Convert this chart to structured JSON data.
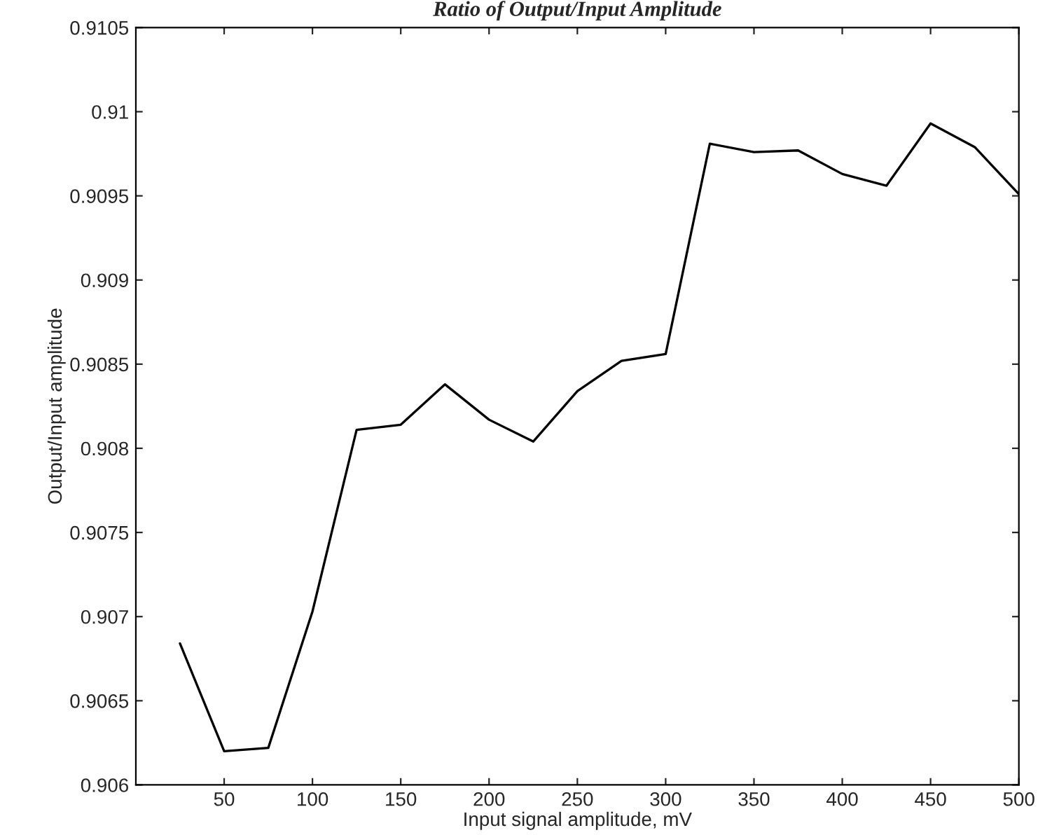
{
  "chart_data": {
    "type": "line",
    "title": "Ratio of Output/Input Amplitude",
    "xlabel": "Input signal amplitude, mV",
    "ylabel": "Output/Input amplitude",
    "x": [
      25,
      50,
      75,
      100,
      125,
      150,
      175,
      200,
      225,
      250,
      275,
      300,
      325,
      350,
      375,
      400,
      425,
      450,
      475,
      500
    ],
    "series": [
      {
        "color": "#000000",
        "values": [
          0.90684,
          0.9062,
          0.90622,
          0.90703,
          0.90811,
          0.90814,
          0.90838,
          0.90817,
          0.90804,
          0.90834,
          0.90852,
          0.90856,
          0.90981,
          0.90976,
          0.90977,
          0.90963,
          0.90956,
          0.90993,
          0.90979,
          0.90951
        ]
      }
    ],
    "xlim": [
      0,
      500
    ],
    "xticks": [
      50,
      100,
      150,
      200,
      250,
      300,
      350,
      400,
      450,
      500
    ],
    "ylim": [
      0.906,
      0.9105
    ],
    "yticks": [
      0.906,
      0.9065,
      0.907,
      0.9075,
      0.908,
      0.9085,
      0.909,
      0.9095,
      0.91,
      0.9105
    ],
    "grid": false,
    "legend": false,
    "marker": "none",
    "line_style": "solid"
  }
}
